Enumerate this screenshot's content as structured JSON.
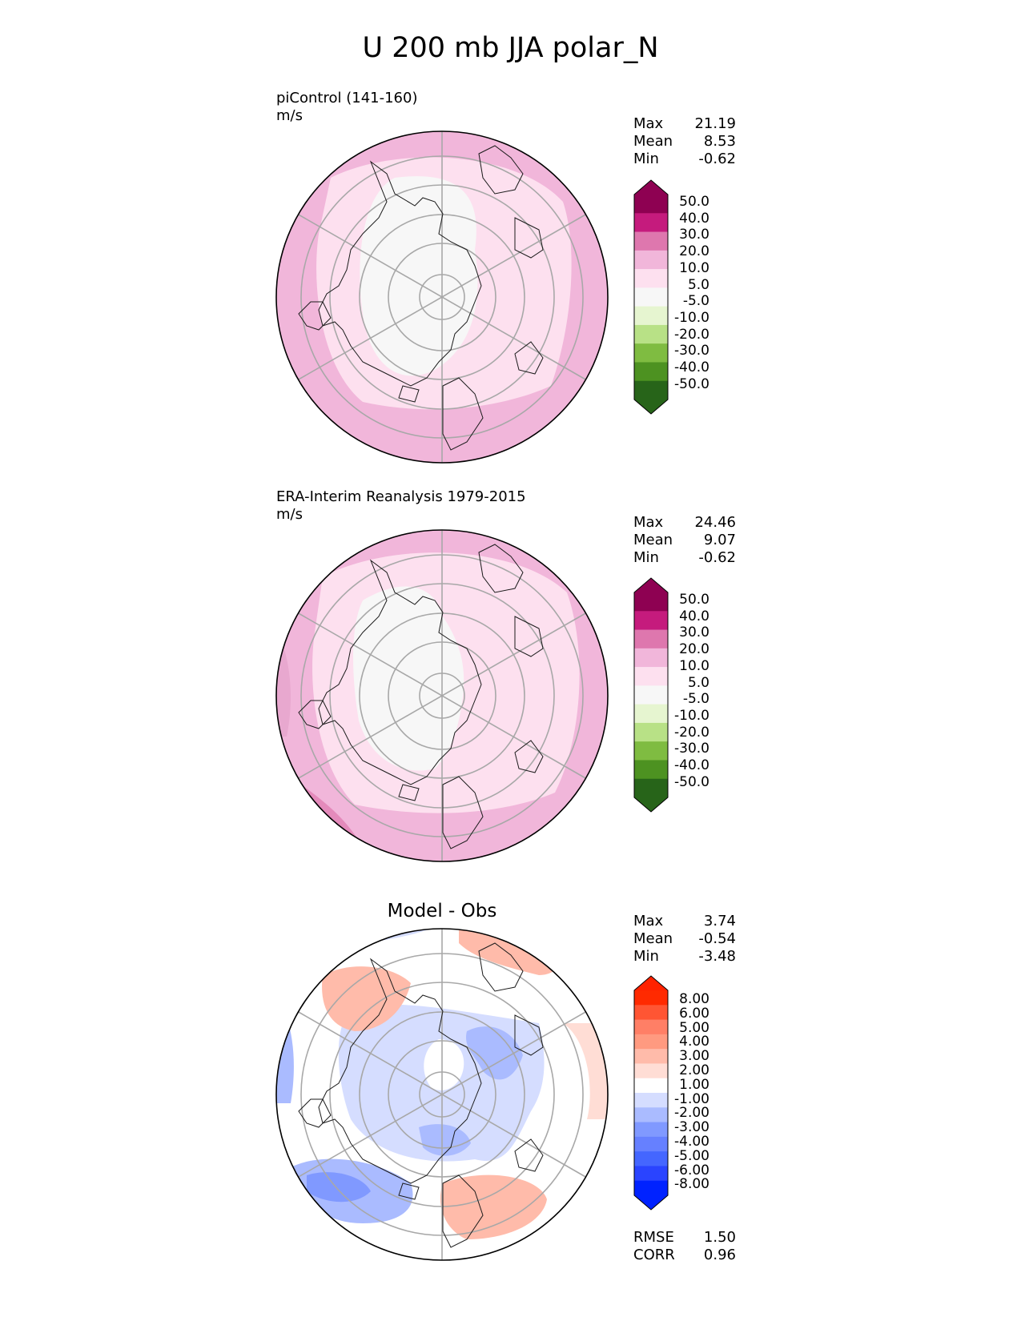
{
  "title": "U 200 mb JJA polar_N",
  "panels": [
    {
      "id": "test",
      "title_line1": "piControl (141-160)",
      "title_line2": "m/s",
      "stats": [
        {
          "label": "Max",
          "value": "21.19"
        },
        {
          "label": "Mean",
          "value": "8.53"
        },
        {
          "label": "Min",
          "value": "-0.62"
        }
      ],
      "colorbar": {
        "labels": [
          "50.0",
          "40.0",
          "30.0",
          "20.0",
          "10.0",
          "5.0",
          "-5.0",
          "-10.0",
          "-20.0",
          "-30.0",
          "-40.0",
          "-50.0"
        ],
        "colors": [
          "#8e0152",
          "#c51b7d",
          "#de77ae",
          "#f1b6da",
          "#fde0ef",
          "#f7f7f7",
          "#e6f5d0",
          "#b8e186",
          "#7fbc41",
          "#4d9221",
          "#276419"
        ]
      }
    },
    {
      "id": "reference",
      "title_line1": "ERA-Interim Reanalysis 1979-2015",
      "title_line2": "m/s",
      "stats": [
        {
          "label": "Max",
          "value": "24.46"
        },
        {
          "label": "Mean",
          "value": "9.07"
        },
        {
          "label": "Min",
          "value": "-0.62"
        }
      ],
      "colorbar": {
        "labels": [
          "50.0",
          "40.0",
          "30.0",
          "20.0",
          "10.0",
          "5.0",
          "-5.0",
          "-10.0",
          "-20.0",
          "-30.0",
          "-40.0",
          "-50.0"
        ],
        "colors": [
          "#8e0152",
          "#c51b7d",
          "#de77ae",
          "#f1b6da",
          "#fde0ef",
          "#f7f7f7",
          "#e6f5d0",
          "#b8e186",
          "#7fbc41",
          "#4d9221",
          "#276419"
        ]
      }
    },
    {
      "id": "difference",
      "title_center": "Model - Obs",
      "stats": [
        {
          "label": "Max",
          "value": "3.74"
        },
        {
          "label": "Mean",
          "value": "-0.54"
        },
        {
          "label": "Min",
          "value": "-3.48"
        }
      ],
      "extra_stats": [
        {
          "label": "RMSE",
          "value": "1.50"
        },
        {
          "label": "CORR",
          "value": "0.96"
        }
      ],
      "colorbar": {
        "labels": [
          "8.00",
          "6.00",
          "5.00",
          "4.00",
          "3.00",
          "2.00",
          "1.00",
          "-1.00",
          "-2.00",
          "-3.00",
          "-4.00",
          "-5.00",
          "-6.00",
          "-8.00"
        ],
        "colors": [
          "#ff2a00",
          "#ff5533",
          "#ff7f66",
          "#ff9a80",
          "#ffbbaa",
          "#ffddd5",
          "#ffffff",
          "#d5ddff",
          "#aabbff",
          "#8099ff",
          "#6680ff",
          "#4466ff",
          "#2a44ff",
          "#0022ff"
        ],
        "top_ext_color": "#ff2200",
        "bottom_ext_color": "#0022ff"
      }
    }
  ]
}
